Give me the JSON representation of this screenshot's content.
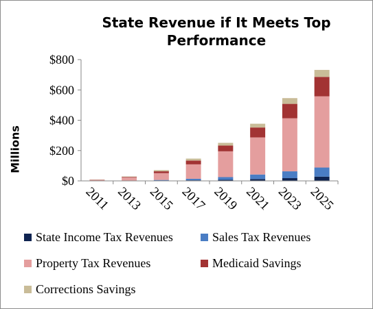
{
  "chart_data": {
    "type": "bar",
    "stacked": true,
    "title": "State Revenue if It Meets Top Performance",
    "ylabel": "Millions",
    "xlabel": "",
    "ylim": [
      0,
      800
    ],
    "yticks": [
      "$0",
      "$200",
      "$400",
      "$600",
      "$800"
    ],
    "categories": [
      "2011",
      "2013",
      "2015",
      "2017",
      "2019",
      "2021",
      "2023",
      "2025"
    ],
    "series": [
      {
        "name": "State Income Tax Revenues",
        "color": "#0f2451",
        "values": [
          0,
          0,
          1,
          4,
          7,
          12,
          18,
          28
        ]
      },
      {
        "name": "Sales Tax Revenues",
        "color": "#4a7dc4",
        "values": [
          1,
          2,
          5,
          10,
          18,
          30,
          45,
          60
        ]
      },
      {
        "name": "Property Tax Revenues",
        "color": "#e49e9e",
        "values": [
          5,
          20,
          45,
          95,
          170,
          245,
          350,
          470
        ]
      },
      {
        "name": "Medicaid Savings",
        "color": "#a23333",
        "values": [
          2,
          4,
          12,
          25,
          38,
          65,
          95,
          128
        ]
      },
      {
        "name": "Corrections Savings",
        "color": "#c9bc98",
        "values": [
          1,
          3,
          8,
          13,
          18,
          25,
          38,
          46
        ]
      }
    ],
    "grid": false,
    "legend": "bottom"
  }
}
